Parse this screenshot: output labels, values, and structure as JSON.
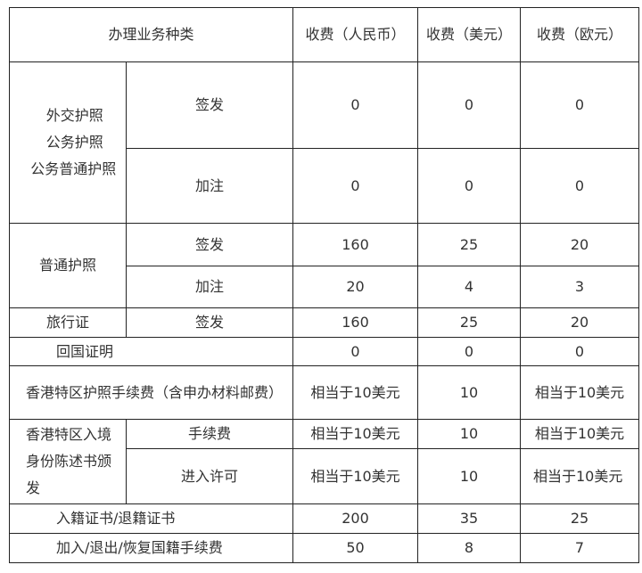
{
  "header": {
    "category": "办理业务种类",
    "rmb": "收费（人民币）",
    "usd": "收费（美元）",
    "eur": "收费（欧元）"
  },
  "rows": {
    "diplomatic": {
      "label_items": [
        "外交护照",
        "公务护照",
        "公务普通护照"
      ],
      "issue": {
        "type": "签发",
        "rmb": "0",
        "usd": "0",
        "eur": "0"
      },
      "endorse": {
        "type": "加注",
        "rmb": "0",
        "usd": "0",
        "eur": "0"
      }
    },
    "ordinary": {
      "label": "普通护照",
      "issue": {
        "type": "签发",
        "rmb": "160",
        "usd": "25",
        "eur": "20"
      },
      "endorse": {
        "type": "加注",
        "rmb": "20",
        "usd": "4",
        "eur": "3"
      }
    },
    "travel": {
      "label": "旅行证",
      "type": "签发",
      "rmb": "160",
      "usd": "25",
      "eur": "20"
    },
    "return_cert": {
      "label": "回国证明",
      "rmb": "0",
      "usd": "0",
      "eur": "0"
    },
    "hk_passport": {
      "label": "香港特区护照手续费（含申办材料邮费）",
      "rmb": "相当于10美元",
      "usd": "10",
      "eur": "相当于10美元"
    },
    "hk_identity": {
      "label": "香港特区入境身份陈述书颁发",
      "fee": {
        "type": "手续费",
        "rmb": "相当于10美元",
        "usd": "10",
        "eur": "相当于10美元"
      },
      "entry": {
        "type": "进入许可",
        "rmb": "相当于10美元",
        "usd": "10",
        "eur": "相当于10美元"
      }
    },
    "naturalization": {
      "label": "入籍证书/退籍证书",
      "rmb": "200",
      "usd": "35",
      "eur": "25"
    },
    "nationality_fee": {
      "label": "加入/退出/恢复国籍手续费",
      "rmb": "50",
      "usd": "8",
      "eur": "7"
    }
  }
}
